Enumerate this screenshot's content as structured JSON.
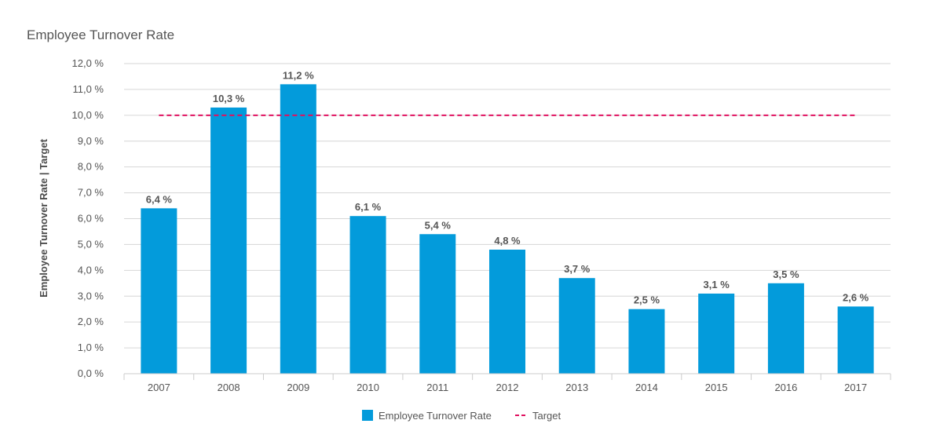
{
  "chart_data": {
    "type": "bar",
    "title": "Employee Turnover Rate",
    "xlabel": "",
    "ylabel": "Employee Turnover Rate | Target",
    "categories": [
      "2007",
      "2008",
      "2009",
      "2010",
      "2011",
      "2012",
      "2013",
      "2014",
      "2015",
      "2016",
      "2017"
    ],
    "series": [
      {
        "name": "Employee Turnover Rate",
        "type": "bar",
        "color": "#039BDB",
        "values": [
          6.4,
          10.3,
          11.2,
          6.1,
          5.4,
          4.8,
          3.7,
          2.5,
          3.1,
          3.5,
          2.6
        ],
        "data_labels": [
          "6,4 %",
          "10,3 %",
          "11,2 %",
          "6,1 %",
          "5,4 %",
          "4,8 %",
          "3,7 %",
          "2,5 %",
          "3,1 %",
          "3,5 %",
          "2,6 %"
        ]
      },
      {
        "name": "Target",
        "type": "line",
        "style": "dashed",
        "color": "#E0105F",
        "values": [
          10.0,
          10.0,
          10.0,
          10.0,
          10.0,
          10.0,
          10.0,
          10.0,
          10.0,
          10.0,
          10.0
        ]
      }
    ],
    "ylim": [
      0,
      12
    ],
    "y_ticks": [
      0,
      1,
      2,
      3,
      4,
      5,
      6,
      7,
      8,
      9,
      10,
      11,
      12
    ],
    "y_tick_labels": [
      "0,0 %",
      "1,0 %",
      "2,0 %",
      "3,0 %",
      "4,0 %",
      "5,0 %",
      "6,0 %",
      "7,0 %",
      "8,0 %",
      "9,0 %",
      "10,0 %",
      "11,0 %",
      "12,0 %"
    ],
    "grid": true,
    "legend_position": "bottom-center",
    "colors": {
      "bar": "#039BDB",
      "target": "#E0105F",
      "grid": "#d6d6d6",
      "axis": "#cccccc",
      "text": "#555555"
    }
  }
}
